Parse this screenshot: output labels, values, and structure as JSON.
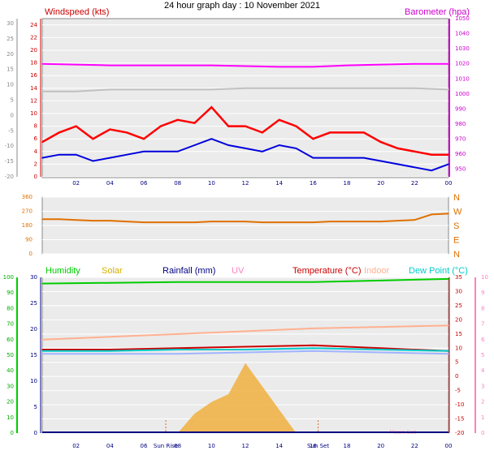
{
  "title": "24 hour graph day : 10 November 2021",
  "time_ticks": [
    "02",
    "04",
    "06",
    "08",
    "10",
    "12",
    "14",
    "16",
    "18",
    "20",
    "22",
    "00"
  ],
  "colors": {
    "wind": "#ff0000",
    "windavg": "#0000dd",
    "baro": "#ff00ff",
    "gust_grey": "#c0c0c0",
    "dir": "#e07000",
    "humidity": "#00cc00",
    "solar": "#d4b000",
    "rain": "#000080",
    "uv": "#ff80c0",
    "temp": "#cc0000",
    "indoor": "#ffb090",
    "dew": "#00cccc",
    "panel_bg": "#ebebeb",
    "grid": "#ffffff"
  },
  "chart_data": [
    {
      "type": "line",
      "panel": "wind-baro",
      "left_axis_label": "Windspeed (kts)",
      "right_axis_label": "Barometer (hpa)",
      "outer_left_ticks": [
        "30",
        "25",
        "20",
        "15",
        "10",
        "5",
        "0",
        "-5",
        "-10",
        "-15",
        "-20"
      ],
      "left_ticks": [
        "24",
        "22",
        "20",
        "18",
        "16",
        "14",
        "12",
        "10",
        "8",
        "6",
        "4",
        "2",
        "0"
      ],
      "right_ticks": [
        "1050",
        "1040",
        "1030",
        "1020",
        "1010",
        "1000",
        "990",
        "980",
        "970",
        "960",
        "950"
      ],
      "ylim_left": [
        0,
        25
      ],
      "ylim_right": [
        945,
        1050
      ],
      "series": [
        {
          "key": "wind",
          "x": [
            0,
            1,
            2,
            3,
            4,
            5,
            6,
            7,
            8,
            9,
            10,
            11,
            12,
            13,
            14,
            15,
            16,
            17,
            18,
            19,
            20,
            21,
            22,
            23,
            24
          ],
          "values": [
            5.5,
            7,
            8,
            6,
            7.5,
            7,
            6,
            8,
            9,
            8.5,
            11,
            8,
            8,
            7,
            9,
            8,
            6,
            7,
            7,
            7,
            5.5,
            4.5,
            4,
            3.5,
            3.5
          ]
        },
        {
          "key": "windavg",
          "x": [
            0,
            1,
            2,
            3,
            4,
            5,
            6,
            7,
            8,
            9,
            10,
            11,
            12,
            13,
            14,
            15,
            16,
            17,
            18,
            19,
            20,
            21,
            22,
            23,
            24
          ],
          "values": [
            3,
            3.5,
            3.5,
            2.5,
            3,
            3.5,
            4,
            4,
            4,
            5,
            6,
            5,
            4.5,
            4,
            5,
            4.5,
            3,
            3,
            3,
            3,
            2.5,
            2,
            1.5,
            1,
            2
          ]
        },
        {
          "key": "baro",
          "x": [
            0,
            2,
            4,
            6,
            8,
            10,
            12,
            14,
            16,
            18,
            20,
            22,
            24
          ],
          "values": [
            1020,
            1019.5,
            1019,
            1019,
            1019,
            1019,
            1018.5,
            1018,
            1018,
            1019,
            1019.5,
            1020,
            1020
          ]
        },
        {
          "key": "gust_grey",
          "x": [
            0,
            2,
            4,
            6,
            8,
            10,
            12,
            14,
            16,
            18,
            20,
            22,
            24
          ],
          "values": [
            13.5,
            13.5,
            13.8,
            13.8,
            13.8,
            13.8,
            14,
            14,
            14,
            14,
            14,
            14,
            13.8
          ]
        }
      ]
    },
    {
      "type": "scatter",
      "panel": "wind-direction",
      "left_ticks": [
        "360",
        "270",
        "180",
        "90",
        "0"
      ],
      "right_ticks": [
        "N",
        "W",
        "S",
        "E",
        "N"
      ],
      "ylim": [
        0,
        360
      ],
      "series": [
        {
          "key": "dir",
          "x": [
            0,
            1,
            2,
            3,
            4,
            5,
            6,
            7,
            8,
            9,
            10,
            11,
            12,
            13,
            14,
            15,
            16,
            17,
            18,
            19,
            20,
            21,
            22,
            23,
            24
          ],
          "values": [
            220,
            220,
            215,
            210,
            210,
            205,
            200,
            200,
            200,
            200,
            205,
            205,
            205,
            200,
            200,
            200,
            200,
            205,
            205,
            205,
            205,
            210,
            215,
            250,
            255
          ]
        }
      ]
    },
    {
      "type": "line",
      "panel": "temp-humidity",
      "legend": [
        "Humidity",
        "Solar",
        "Rainfall (mm)",
        "UV",
        "Temperature (°C)",
        "Indoor",
        "Dew Point (°C)"
      ],
      "sun_labels": [
        "Sun Rise",
        "Sun Set"
      ],
      "moon_label": "Moon Set",
      "outer_left_ticks": [
        "100",
        "90",
        "80",
        "70",
        "60",
        "50",
        "40",
        "30",
        "20",
        "10",
        "0"
      ],
      "left_ticks": [
        "30",
        "25",
        "20",
        "15",
        "10",
        "5",
        "0"
      ],
      "right_ticks": [
        "35",
        "30",
        "25",
        "20",
        "15",
        "10",
        "5",
        "0",
        "-5",
        "-10",
        "-15",
        "-20"
      ],
      "far_right_ticks": [
        "10",
        "9",
        "8",
        "7",
        "6",
        "5",
        "4",
        "3",
        "2",
        "1",
        "0"
      ],
      "ylim_temp": [
        -20,
        35
      ],
      "series": [
        {
          "key": "humidity",
          "x": [
            0,
            4,
            8,
            12,
            16,
            20,
            24
          ],
          "values": [
            96,
            96.5,
            97,
            97,
            97,
            98,
            99
          ]
        },
        {
          "key": "temp",
          "x": [
            0,
            4,
            8,
            12,
            16,
            20,
            24
          ],
          "values": [
            9.5,
            9.5,
            10,
            10.5,
            11,
            10,
            9
          ]
        },
        {
          "key": "indoor",
          "x": [
            0,
            4,
            8,
            12,
            16,
            20,
            24
          ],
          "values": [
            13,
            14,
            15,
            16,
            17,
            17.5,
            18
          ]
        },
        {
          "key": "dew",
          "x": [
            0,
            4,
            8,
            12,
            16,
            20,
            24
          ],
          "values": [
            9,
            9,
            9.5,
            9.5,
            10,
            9.5,
            9
          ]
        },
        {
          "key": "dew2",
          "x": [
            0,
            4,
            8,
            12,
            16,
            20,
            24
          ],
          "values": [
            8,
            8,
            8,
            8.5,
            9,
            8.5,
            8
          ]
        }
      ],
      "solar": {
        "x": [
          8,
          9,
          10,
          11,
          12,
          13,
          14,
          15
        ],
        "values": [
          0,
          50,
          80,
          100,
          180,
          120,
          60,
          0
        ]
      }
    }
  ]
}
